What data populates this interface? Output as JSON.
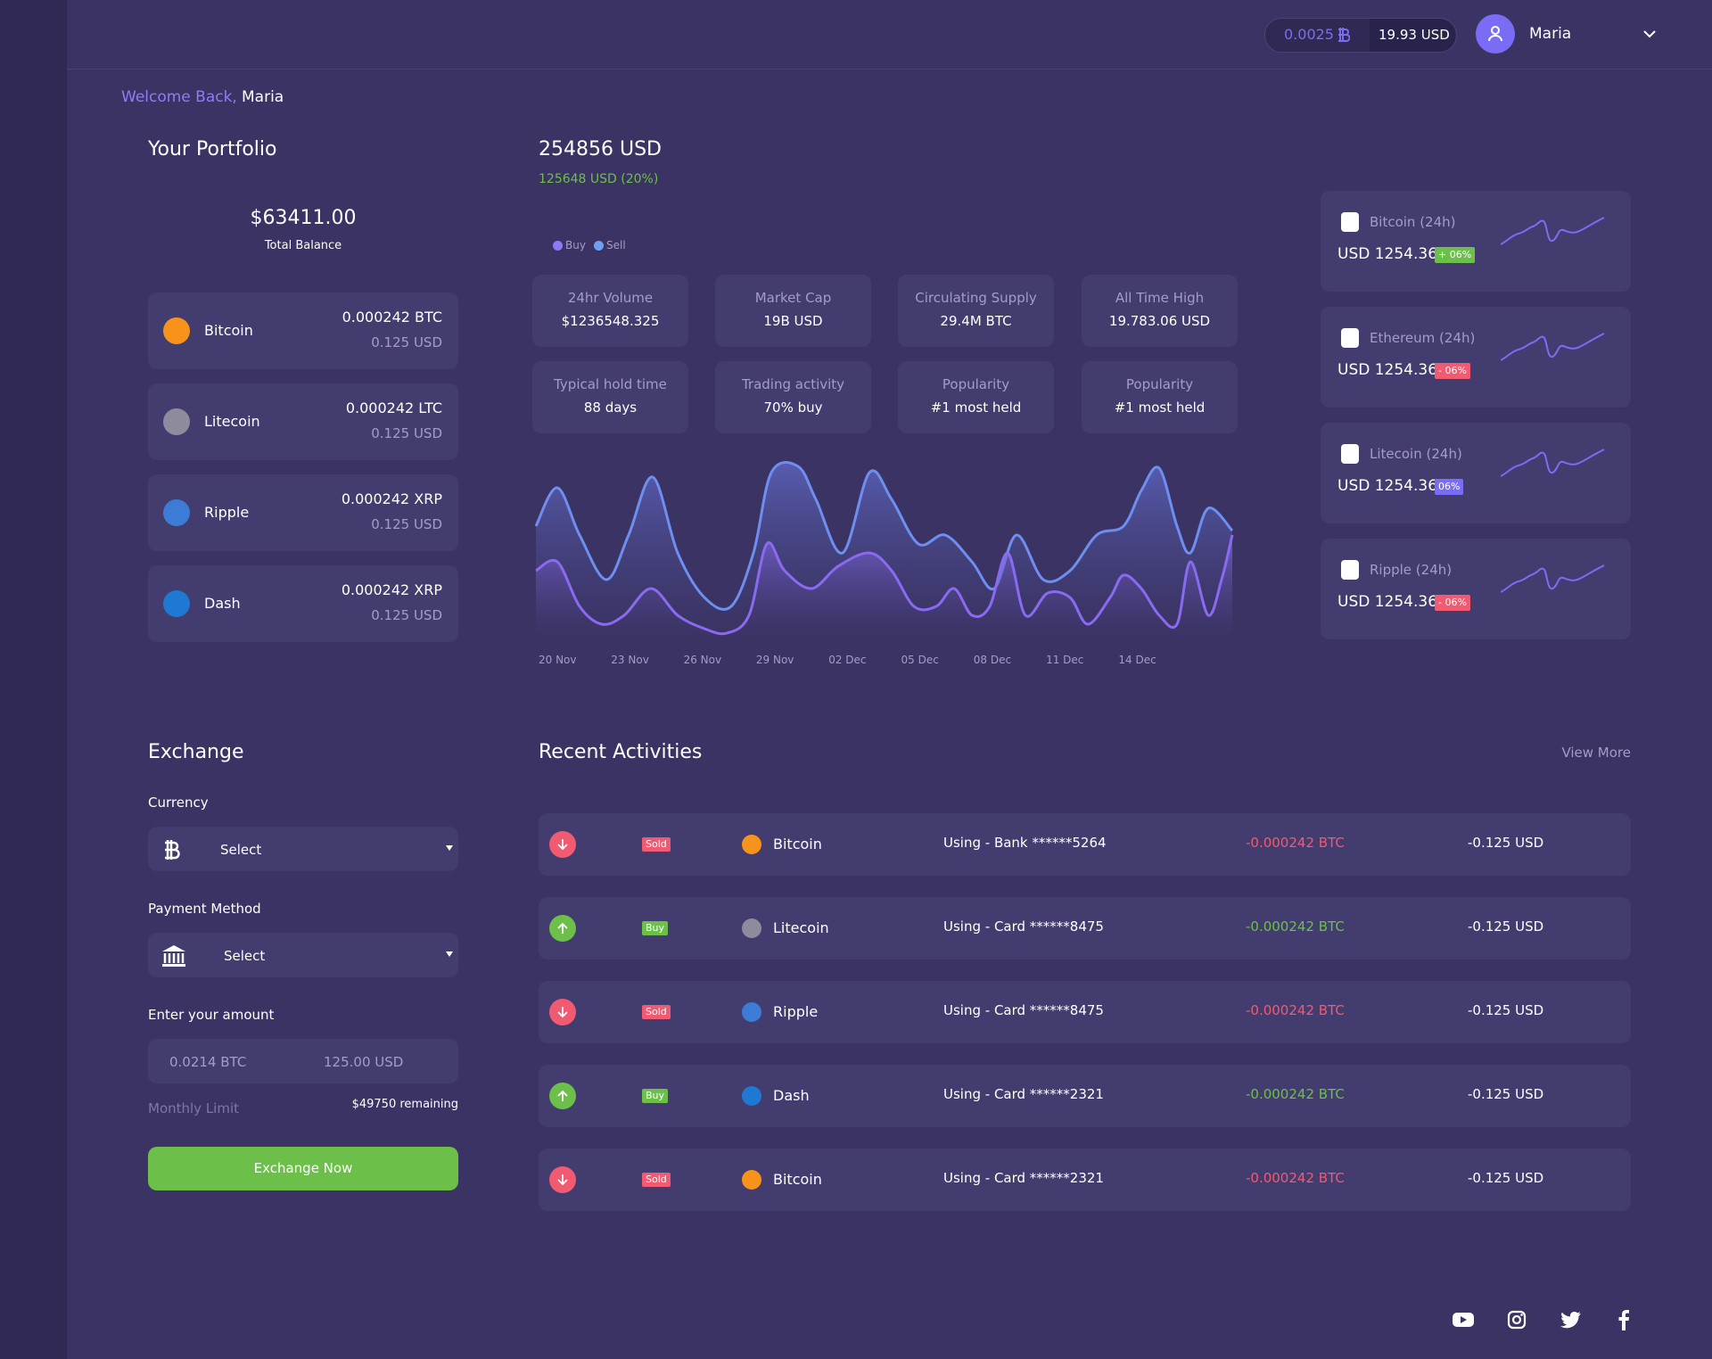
{
  "header": {
    "balance_btc": "0.0025",
    "balance_usd": "19.93 USD",
    "user": "Maria"
  },
  "welcome": {
    "greeting": "Welcome Back,",
    "name": "Maria"
  },
  "portfolio": {
    "title": "Your Portfolio",
    "total": "$63411.00",
    "total_label": "Total Balance",
    "coins": [
      {
        "name": "Bitcoin",
        "amount": "0.000242 BTC",
        "usd": "0.125 USD"
      },
      {
        "name": "Litecoin",
        "amount": "0.000242 LTC",
        "usd": "0.125 USD"
      },
      {
        "name": "Ripple",
        "amount": "0.000242 XRP",
        "usd": "0.125 USD"
      },
      {
        "name": "Dash",
        "amount": "0.000242 XRP",
        "usd": "0.125 USD"
      }
    ]
  },
  "overview": {
    "value": "254856 USD",
    "change": "125648 USD (20%)",
    "legend": [
      "Buy",
      "Sell"
    ],
    "stats": [
      {
        "label": "24hr Volume",
        "value": "$1236548.325"
      },
      {
        "label": "Market Cap",
        "value": "19B USD"
      },
      {
        "label": "Circulating Supply",
        "value": "29.4M BTC"
      },
      {
        "label": "All Time High",
        "value": "19.783.06 USD"
      },
      {
        "label": "Typical hold time",
        "value": "88 days"
      },
      {
        "label": "Trading activity",
        "value": "70% buy"
      },
      {
        "label": "Popularity",
        "value": "#1 most held"
      },
      {
        "label": "Popularity",
        "value": "#1 most held"
      }
    ],
    "dates": [
      "20 Nov",
      "23 Nov",
      "26 Nov",
      "29 Nov",
      "02 Dec",
      "05 Dec",
      "08 Dec",
      "11 Dec",
      "14 Dec"
    ]
  },
  "tickers": [
    {
      "name": "Bitcoin (24h)",
      "price": "USD 1254.36",
      "change": "+ 06%"
    },
    {
      "name": "Ethereum (24h)",
      "price": "USD 1254.36",
      "change": "- 06%"
    },
    {
      "name": "Litecoin (24h)",
      "price": "USD 1254.36",
      "change": "06%"
    },
    {
      "name": "Ripple (24h)",
      "price": "USD 1254.36",
      "change": "- 06%"
    }
  ],
  "exchange": {
    "title": "Exchange",
    "currency_label": "Currency",
    "currency_select": "Select",
    "payment_label": "Payment Method",
    "payment_select": "Select",
    "amount_label": "Enter your amount",
    "amount_btc": "0.0214 BTC",
    "amount_usd": "125.00 USD",
    "limit_label": "Monthly Limit",
    "limit_value": "$49750 remaining",
    "button": "Exchange Now"
  },
  "activities": {
    "title": "Recent Activities",
    "view_more": "View More",
    "rows": [
      {
        "type": "Sold",
        "coin": "Bitcoin",
        "method": "Using - Bank ******5264",
        "btc": "-0.000242 BTC",
        "usd": "-0.125 USD"
      },
      {
        "type": "Buy",
        "coin": "Litecoin",
        "method": "Using - Card ******8475",
        "btc": "-0.000242 BTC",
        "usd": "-0.125 USD"
      },
      {
        "type": "Sold",
        "coin": "Ripple",
        "method": "Using - Card ******8475",
        "btc": "-0.000242 BTC",
        "usd": "-0.125 USD"
      },
      {
        "type": "Buy",
        "coin": "Dash",
        "method": "Using - Card ******2321",
        "btc": "-0.000242 BTC",
        "usd": "-0.125 USD"
      },
      {
        "type": "Sold",
        "coin": "Bitcoin",
        "method": "Using - Card ******2321",
        "btc": "-0.000242 BTC",
        "usd": "-0.125 USD"
      }
    ]
  }
}
